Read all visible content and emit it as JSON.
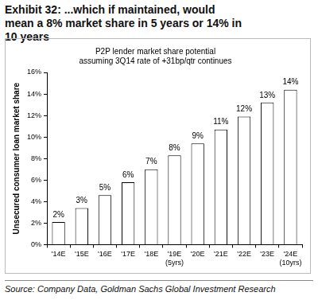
{
  "chart_data": {
    "type": "bar",
    "title": "Exhibit 32: ...which if maintained, would mean a 8% market share in 5 years or 14% in 10 years",
    "subtitle": [
      "P2P lender market share potential",
      "assuming 3Q14 rate of +31bp/qtr continues"
    ],
    "ylabel": "Unsecured consumer loan market share",
    "source": "Source: Company Data, Goldman Sachs Global Investment Research",
    "categories": [
      "'14E",
      "'15E",
      "'16E",
      "'17E",
      "'18E",
      "'19E (5yrs)",
      "'20E",
      "'21E",
      "'22E",
      "'23E",
      "'24E (10yrs)"
    ],
    "values": [
      2.1,
      3.4,
      4.6,
      5.8,
      7.0,
      8.3,
      9.4,
      10.7,
      11.9,
      13.2,
      14.4
    ],
    "value_labels": [
      "2%",
      "3%",
      "5%",
      "6%",
      "7%",
      "8%",
      "9%",
      "11%",
      "12%",
      "13%",
      "14%"
    ],
    "data_labels": true,
    "color": "#ffffff",
    "ylim": [
      0,
      16
    ],
    "yticks": [
      {
        "value": 0,
        "label": "0%"
      },
      {
        "value": 2,
        "label": "2%"
      },
      {
        "value": 4,
        "label": "4%"
      },
      {
        "value": 6,
        "label": "6%"
      },
      {
        "value": 8,
        "label": "8%"
      },
      {
        "value": 10,
        "label": "10%"
      },
      {
        "value": 12,
        "label": "12%"
      },
      {
        "value": 14,
        "label": "14%"
      },
      {
        "value": 16,
        "label": "16%"
      }
    ],
    "grid": false
  }
}
